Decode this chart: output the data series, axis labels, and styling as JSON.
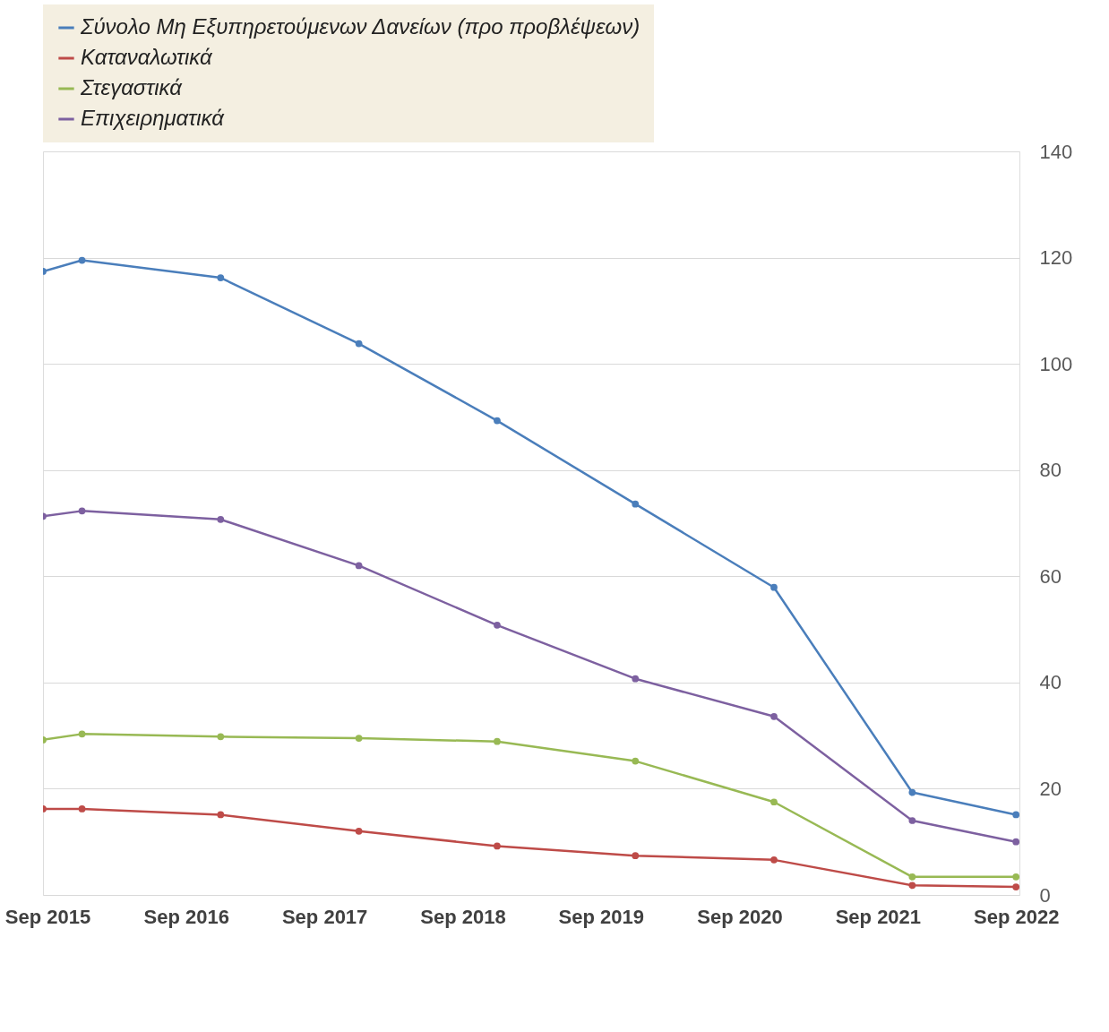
{
  "chart_data": {
    "type": "line",
    "x": [
      "2015-08-20",
      "2015-12-01",
      "2016-12-01",
      "2017-12-01",
      "2018-12-01",
      "2019-12-01",
      "2020-12-01",
      "2021-12-01",
      "2022-09-01"
    ],
    "series": [
      {
        "name": "Σύνολο Μη Εξυπηρετούμενων Δανείων (προ προβλέψεων)",
        "color": "#4a7ebb",
        "values": [
          117.4,
          119.5,
          116.2,
          103.8,
          89.3,
          73.6,
          57.9,
          19.3,
          15.1
        ]
      },
      {
        "name": "Καταναλωτικά",
        "color": "#be4b48",
        "values": [
          16.2,
          16.2,
          15.1,
          12,
          9.2,
          7.4,
          6.6,
          1.8,
          1.5
        ]
      },
      {
        "name": "Στεγαστικά",
        "color": "#98b954",
        "values": [
          29.2,
          30.3,
          29.8,
          29.5,
          28.9,
          25.2,
          17.5,
          3.4,
          3.4
        ]
      },
      {
        "name": "Επιχειρηματικά",
        "color": "#7d60a0",
        "values": [
          71.3,
          72.3,
          70.7,
          62,
          50.8,
          40.7,
          33.6,
          14,
          10
        ]
      }
    ],
    "xlim": [
      "2015-08-20",
      "2022-09-10"
    ],
    "xticks": [
      {
        "value": "2015-09-01",
        "label": "Sep 2015"
      },
      {
        "value": "2016-09-01",
        "label": "Sep 2016"
      },
      {
        "value": "2017-09-01",
        "label": "Sep 2017"
      },
      {
        "value": "2018-09-01",
        "label": "Sep 2018"
      },
      {
        "value": "2019-09-01",
        "label": "Sep 2019"
      },
      {
        "value": "2020-09-01",
        "label": "Sep 2020"
      },
      {
        "value": "2021-09-01",
        "label": "Sep 2021"
      },
      {
        "value": "2022-09-01",
        "label": "Sep 2022"
      }
    ],
    "ylim": [
      0,
      140
    ],
    "yticks": [
      0,
      20,
      40,
      60,
      80,
      100,
      120,
      140
    ],
    "grid": "y",
    "legend": "top",
    "marker": "circle",
    "line_style": "solid"
  }
}
